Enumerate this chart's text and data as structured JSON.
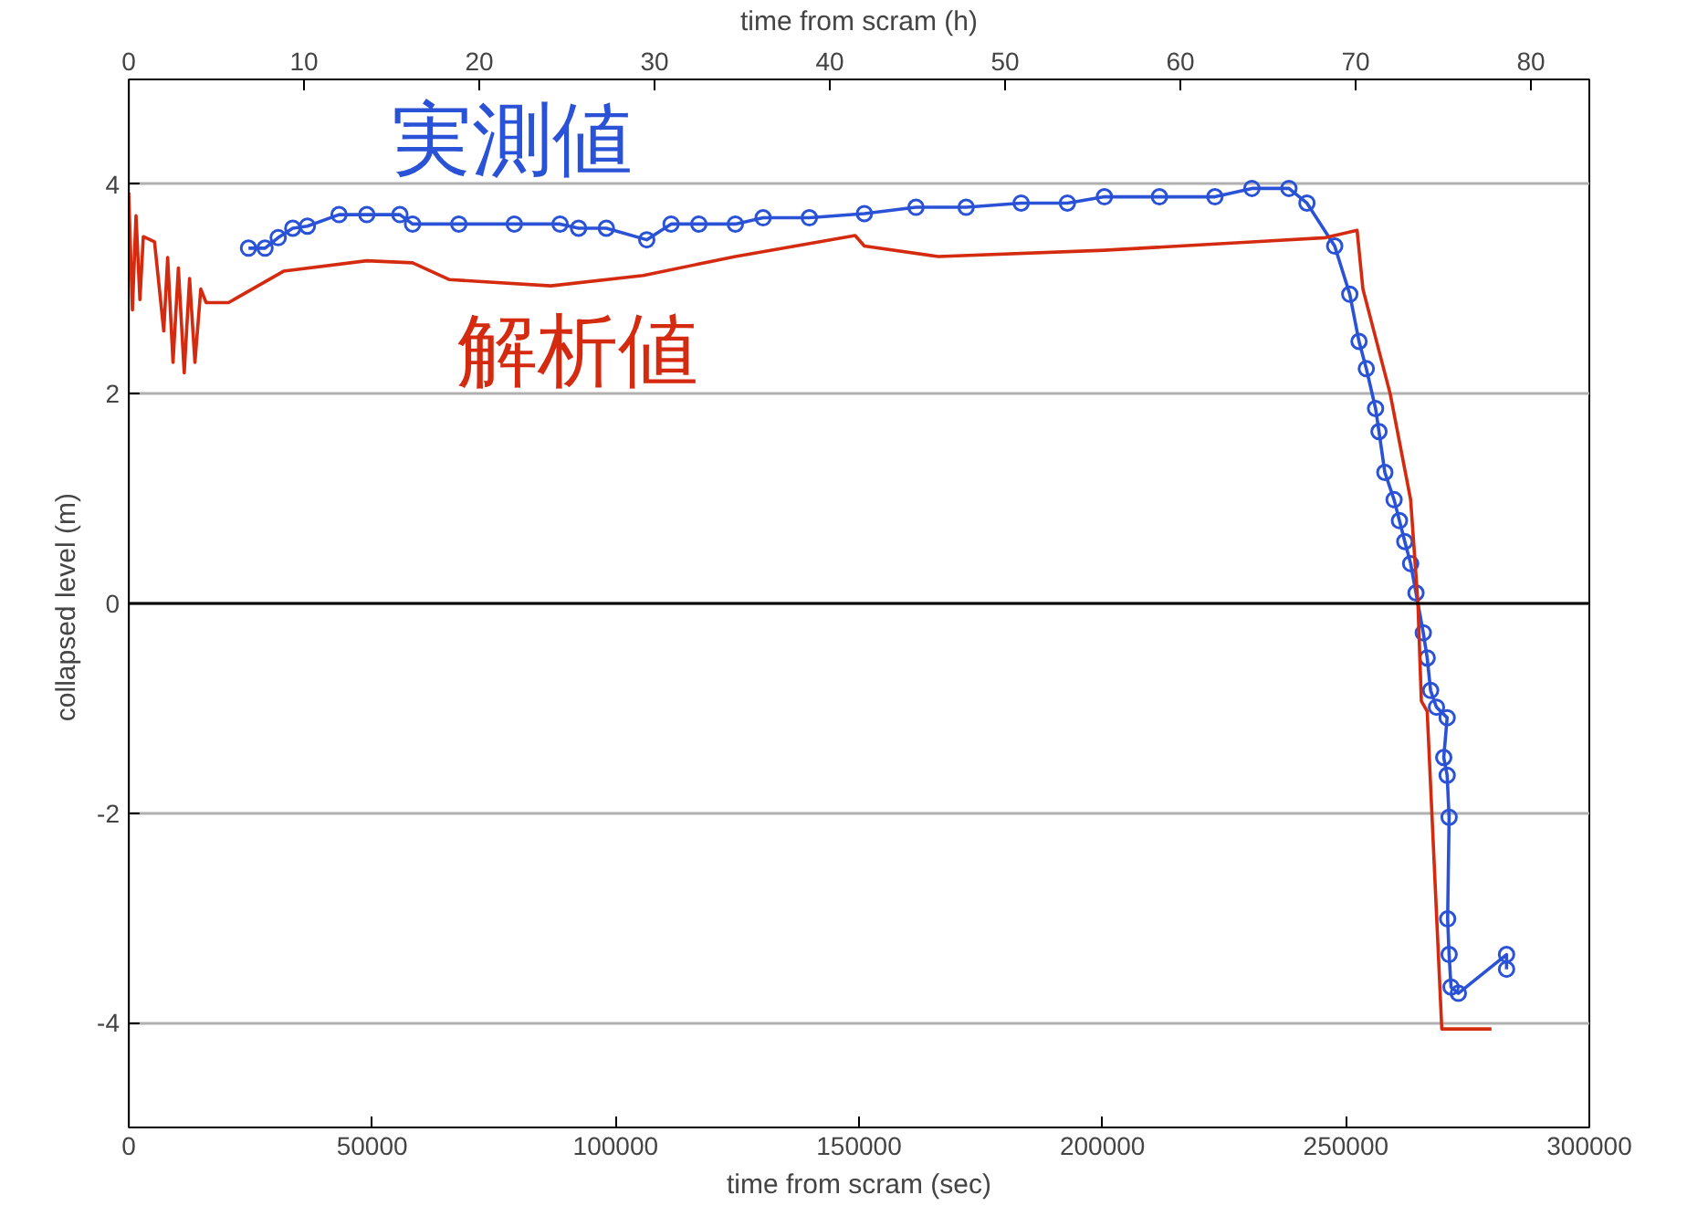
{
  "chart_data": {
    "type": "line",
    "xlabel": "time from scram (sec)",
    "x2label": "time from scram (h)",
    "ylabel": "collapsed level  (m)",
    "xlim": [
      0,
      300000
    ],
    "xticks": [
      0,
      50000,
      100000,
      150000,
      200000,
      250000,
      300000
    ],
    "x2lim": [
      0,
      83.333
    ],
    "x2ticks": [
      0,
      10,
      20,
      30,
      40,
      50,
      60,
      70,
      80
    ],
    "ylim": [
      -5,
      5
    ],
    "yticks": [
      -4,
      -2,
      0,
      2,
      4
    ],
    "grid": true,
    "line_style": "solid",
    "ref_lines": [
      {
        "axis": "y",
        "value": 0,
        "color": "#000000"
      }
    ],
    "series": [
      {
        "name": "実測値",
        "color": "#2a52d6",
        "marker": "circle",
        "x": [
          24600,
          28000,
          30700,
          33700,
          36700,
          43200,
          48900,
          55700,
          58300,
          67800,
          79200,
          88600,
          92400,
          98100,
          106400,
          111400,
          117100,
          124600,
          130300,
          139800,
          151100,
          161700,
          172000,
          183300,
          192800,
          200400,
          211700,
          223100,
          230700,
          238300,
          242000,
          247700,
          250800,
          252700,
          254200,
          256100,
          256800,
          258000,
          259900,
          261000,
          262100,
          263300,
          264400,
          265900,
          266700,
          267400,
          268600,
          270800,
          270100,
          270800,
          271200,
          270900,
          271200,
          271600,
          273100,
          283000,
          283000
        ],
        "values": [
          3.39,
          3.39,
          3.49,
          3.58,
          3.6,
          3.71,
          3.71,
          3.71,
          3.62,
          3.62,
          3.62,
          3.62,
          3.58,
          3.58,
          3.47,
          3.62,
          3.62,
          3.62,
          3.68,
          3.68,
          3.72,
          3.78,
          3.78,
          3.82,
          3.82,
          3.88,
          3.88,
          3.88,
          3.96,
          3.96,
          3.82,
          3.41,
          2.95,
          2.5,
          2.24,
          1.86,
          1.64,
          1.25,
          0.99,
          0.79,
          0.59,
          0.38,
          0.1,
          -0.28,
          -0.52,
          -0.83,
          -0.99,
          -1.09,
          -1.47,
          -1.64,
          -2.04,
          -3.01,
          -3.35,
          -3.66,
          -3.72,
          -3.35,
          -3.49
        ]
      },
      {
        "name": "解析値",
        "color": "#d42a10",
        "marker": "none",
        "x": [
          0,
          760,
          1500,
          2300,
          3000,
          5300,
          7200,
          8000,
          9100,
          10200,
          11400,
          12500,
          13600,
          14800,
          15900,
          18600,
          20500,
          31800,
          48900,
          58300,
          65900,
          86700,
          105700,
          124600,
          149200,
          151100,
          166300,
          200400,
          230700,
          245800,
          252300,
          253500,
          259100,
          263300,
          264800,
          265500,
          266700,
          269700,
          279900
        ],
        "values": [
          3.92,
          2.8,
          3.7,
          2.9,
          3.5,
          3.45,
          2.6,
          3.3,
          2.3,
          3.2,
          2.2,
          3.1,
          2.3,
          3.0,
          2.87,
          2.87,
          2.87,
          3.17,
          3.27,
          3.25,
          3.09,
          3.03,
          3.13,
          3.31,
          3.51,
          3.41,
          3.31,
          3.37,
          3.45,
          3.49,
          3.56,
          3.0,
          2.0,
          0.99,
          0,
          -0.93,
          -1.03,
          -4.06,
          -4.06
        ]
      }
    ]
  }
}
